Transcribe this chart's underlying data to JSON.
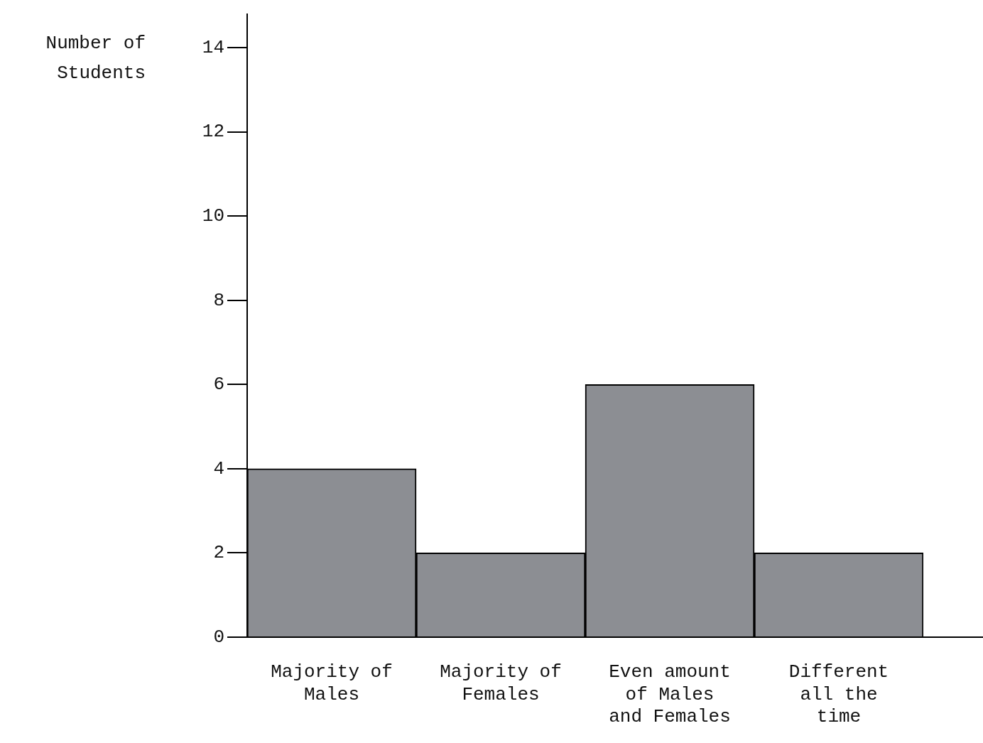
{
  "chart_data": {
    "type": "bar",
    "ylabel": "Number of Students",
    "categories": [
      "Majority of Males",
      "Majority of Females",
      "Even amount of Males and Females",
      "Different all the time"
    ],
    "values": [
      4,
      2,
      6,
      2
    ],
    "color": "#8c8e93",
    "ylim": [
      0,
      14.8
    ],
    "yticks": [
      0,
      2,
      4,
      6,
      8,
      10,
      12,
      14
    ]
  }
}
